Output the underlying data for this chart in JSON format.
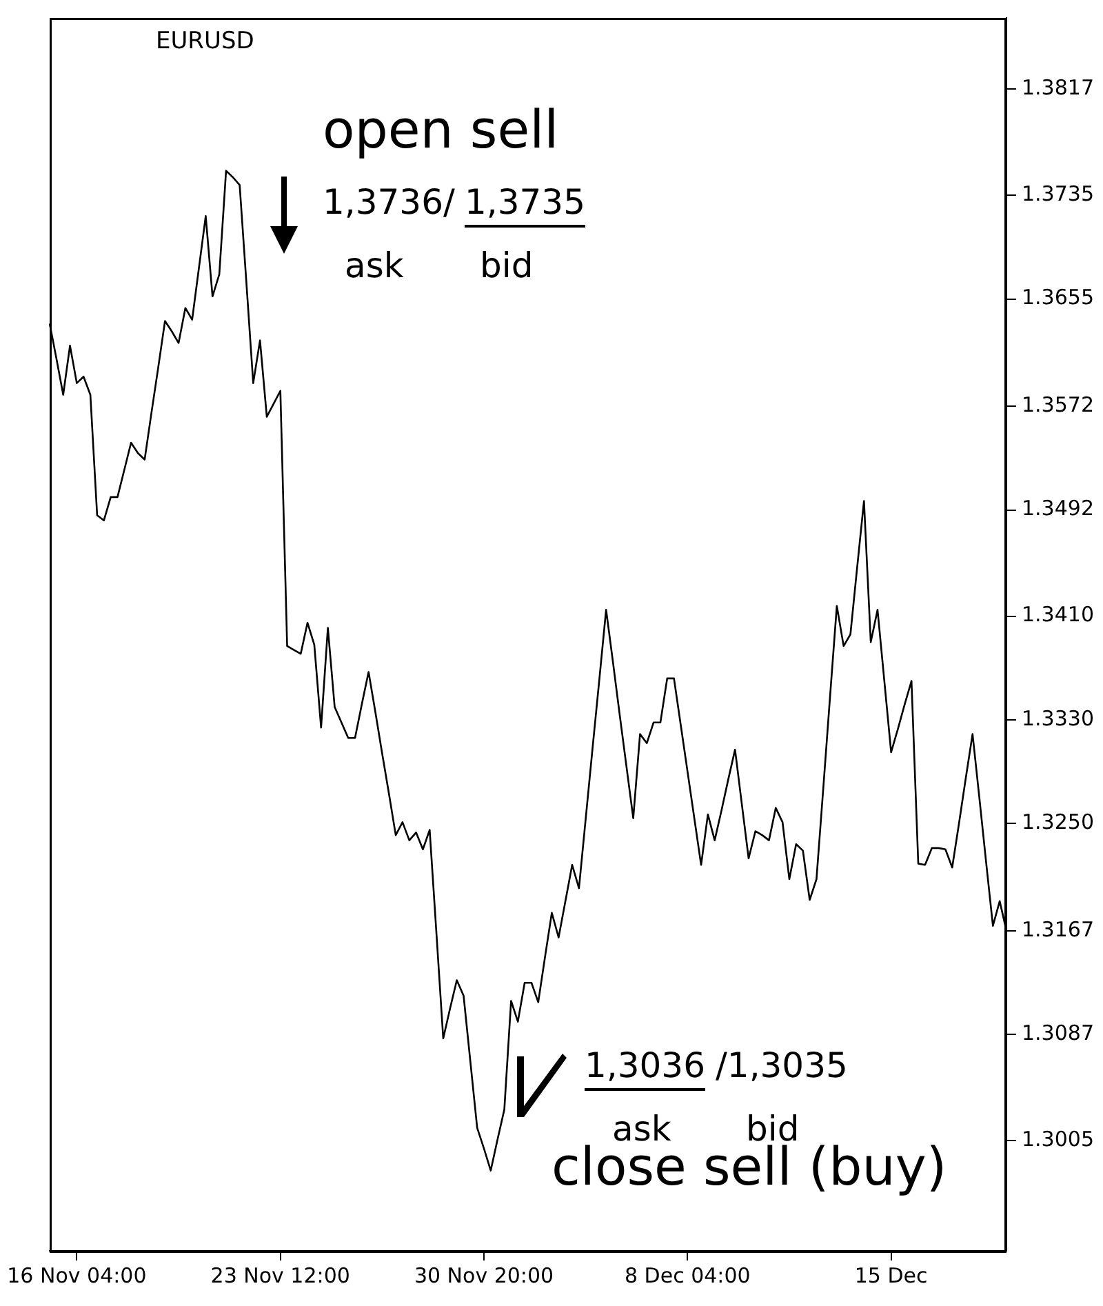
{
  "chart_data": {
    "type": "line",
    "title": "EURUSD",
    "annotations": [
      "open sell",
      "1,3736/",
      "1,3735",
      "ask",
      "bid",
      "1,3036",
      "/1,3035",
      "ask",
      "bid",
      "close sell (buy)"
    ],
    "categories": [
      null,
      null,
      null,
      null,
      "16 Nov 04:00",
      null,
      null,
      null,
      null,
      null,
      null,
      null,
      null,
      null,
      null,
      null,
      null,
      null,
      null,
      null,
      null,
      null,
      null,
      null,
      null,
      null,
      null,
      null,
      null,
      null,
      null,
      null,
      null,
      null,
      "23 Nov 12:00",
      null,
      null,
      null,
      null,
      null,
      null,
      null,
      null,
      null,
      null,
      null,
      null,
      null,
      null,
      null,
      null,
      null,
      null,
      null,
      null,
      null,
      null,
      null,
      null,
      null,
      null,
      null,
      null,
      null,
      "30 Nov 20:00",
      null,
      null,
      null,
      null,
      null,
      null,
      null,
      null,
      null,
      null,
      null,
      null,
      null,
      null,
      null,
      null,
      null,
      null,
      null,
      null,
      null,
      null,
      null,
      null,
      null,
      null,
      null,
      null,
      null,
      "8 Dec 04:00",
      null,
      null,
      null,
      null,
      null,
      null,
      null,
      null,
      null,
      null,
      null,
      null,
      null,
      null,
      null,
      null,
      null,
      null,
      null,
      null,
      null,
      null,
      null,
      null,
      null,
      null,
      null,
      null,
      null,
      "15 Dec",
      null,
      null,
      null,
      null,
      null,
      null,
      null,
      null,
      null,
      null,
      null,
      null,
      null,
      null,
      null,
      null,
      null
    ],
    "series": [
      {
        "color": "#000000",
        "values": [
          1.3636,
          1.3609,
          1.3581,
          1.3619,
          1.359,
          1.3595,
          1.3581,
          1.3488,
          1.3484,
          1.3502,
          1.3502,
          1.3523,
          1.3544,
          1.3536,
          1.3531,
          1.3567,
          1.3602,
          1.3638,
          1.363,
          1.3621,
          1.3648,
          1.3639,
          1.3679,
          1.3719,
          1.3657,
          1.3674,
          1.3754,
          1.3749,
          1.3743,
          1.3667,
          1.359,
          1.3623,
          1.3564,
          1.3574,
          1.3584,
          1.3387,
          1.3384,
          1.3381,
          1.3405,
          1.3388,
          1.3324,
          1.3401,
          1.334,
          1.3328,
          1.3316,
          1.3316,
          1.3342,
          1.3367,
          1.3336,
          1.3304,
          1.3273,
          1.3241,
          1.3251,
          1.3237,
          1.3243,
          1.323,
          1.3245,
          1.3165,
          1.3084,
          1.3107,
          1.3129,
          1.3117,
          1.3066,
          1.3015,
          1.2999,
          1.2982,
          1.3006,
          1.3029,
          1.3113,
          1.3097,
          1.3127,
          1.3127,
          1.3112,
          1.3147,
          1.3181,
          1.3162,
          1.319,
          1.3218,
          1.32,
          1.3254,
          1.3308,
          1.3361,
          1.3415,
          1.3375,
          1.3334,
          1.3294,
          1.3254,
          1.3319,
          1.3312,
          1.3328,
          1.3328,
          1.3362,
          1.3362,
          1.3326,
          1.329,
          1.3254,
          1.3218,
          1.3257,
          1.3237,
          1.326,
          1.3284,
          1.3307,
          1.3265,
          1.3223,
          1.3244,
          1.3241,
          1.3237,
          1.3262,
          1.3251,
          1.3207,
          1.3234,
          1.3229,
          1.3191,
          1.3207,
          1.3277,
          1.3348,
          1.3418,
          1.3387,
          1.3396,
          1.3448,
          1.3499,
          1.339,
          1.3415,
          1.336,
          1.3305,
          1.3323,
          1.3342,
          1.336,
          1.3219,
          1.3218,
          1.3231,
          1.3231,
          1.323,
          1.3216,
          1.325,
          1.3285,
          1.3319,
          1.327,
          1.322,
          1.3171,
          1.319,
          1.3167
        ]
      }
    ],
    "ylim": [
      1.292,
      1.3872
    ],
    "yticks": [
      {
        "value": 1.3005,
        "label": "1.3005"
      },
      {
        "value": 1.3087,
        "label": "1.3087"
      },
      {
        "value": 1.3167,
        "label": "1.3167"
      },
      {
        "value": 1.325,
        "label": "1.3250"
      },
      {
        "value": 1.333,
        "label": "1.3330"
      },
      {
        "value": 1.341,
        "label": "1.3410"
      },
      {
        "value": 1.3492,
        "label": "1.3492"
      },
      {
        "value": 1.3572,
        "label": "1.3572"
      },
      {
        "value": 1.3655,
        "label": "1.3655"
      },
      {
        "value": 1.3735,
        "label": "1.3735"
      },
      {
        "value": 1.3817,
        "label": "1.3817"
      }
    ],
    "legend": false,
    "marker": "none",
    "line_style": "solid"
  }
}
